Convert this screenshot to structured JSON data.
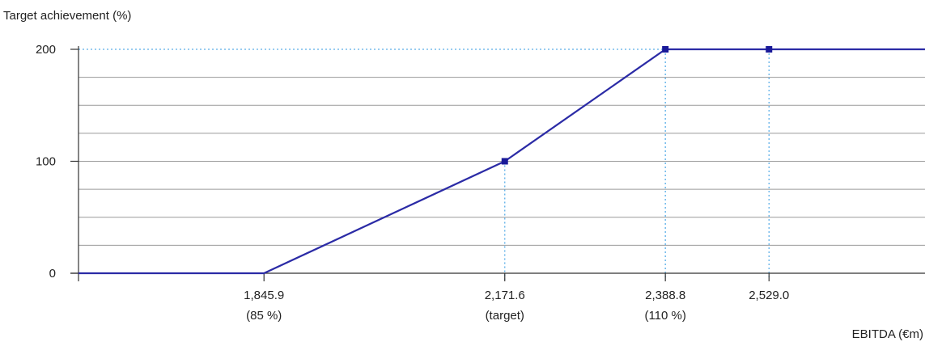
{
  "chart_data": {
    "type": "line",
    "ylabel": "Target achievement (%)",
    "xlabel": "EBITDA (€m)",
    "ylim": [
      0,
      200
    ],
    "yticks": [
      0,
      100,
      200
    ],
    "minor_gridlines": [
      25,
      50,
      75,
      125,
      150,
      175
    ],
    "grid": true,
    "xlim": [
      1595,
      2740
    ],
    "xticks": [
      {
        "value": 1845.9,
        "label": "1,845.9",
        "sublabel": "(85 %)"
      },
      {
        "value": 2171.6,
        "label": "2,171.6",
        "sublabel": "(target)"
      },
      {
        "value": 2388.8,
        "label": "2,388.8",
        "sublabel": "(110 %)"
      },
      {
        "value": 2529.0,
        "label": "2,529.0",
        "sublabel": ""
      }
    ],
    "series": [
      {
        "points": [
          {
            "x": 1595,
            "y": 0
          },
          {
            "x": 1845.9,
            "y": 0
          },
          {
            "x": 2171.6,
            "y": 100
          },
          {
            "x": 2388.8,
            "y": 200
          },
          {
            "x": 2529.0,
            "y": 200
          },
          {
            "x": 2740,
            "y": 200
          }
        ],
        "markers": [
          {
            "x": 2171.6,
            "y": 100
          },
          {
            "x": 2388.8,
            "y": 200
          },
          {
            "x": 2529.0,
            "y": 200
          }
        ]
      }
    ],
    "colors": {
      "line": "#2b2ba6",
      "grid": "#9a9a9a",
      "reference": "#5aaee8",
      "axis": "#333333"
    }
  }
}
